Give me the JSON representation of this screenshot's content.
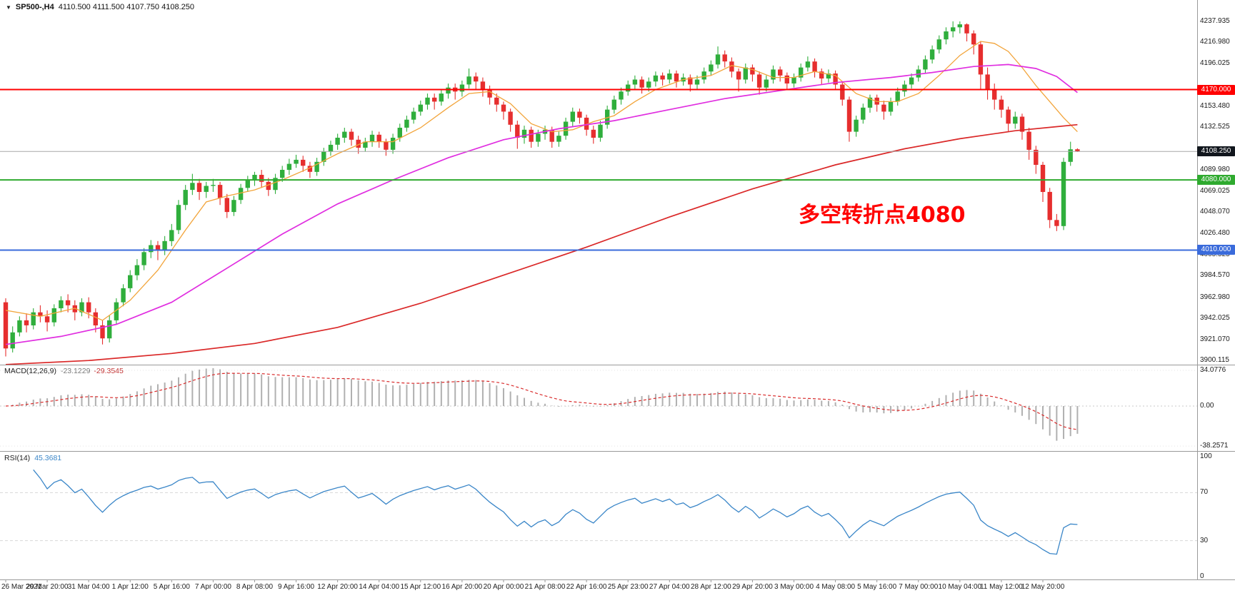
{
  "header": {
    "dropdown_icon": "▼",
    "symbol": "SP500-,H4",
    "ohlc": "4110.500 4111.500 4107.750 4108.250"
  },
  "annotation": {
    "text": "多空转折点4080",
    "color": "#ff0000"
  },
  "price_axis": {
    "ticks": [
      "4237.935",
      "4216.980",
      "4196.025",
      "4153.480",
      "4132.525",
      "4089.980",
      "4069.025",
      "4048.070",
      "4026.480",
      "4005.525",
      "3984.570",
      "3962.980",
      "3942.025",
      "3921.070",
      "3900.115"
    ],
    "tags": [
      {
        "label": "4170.000",
        "price": 4170.0,
        "bg": "#ff0000"
      },
      {
        "label": "4108.250",
        "price": 4108.25,
        "bg": "#11161d"
      },
      {
        "label": "4080.000",
        "price": 4080.0,
        "bg": "#2faa2f"
      },
      {
        "label": "4010.000",
        "price": 4010.0,
        "bg": "#3a6bdb"
      }
    ]
  },
  "levels": [
    {
      "name": "resistance-line-4170",
      "price": 4170.0,
      "color": "#ff0000",
      "width": 2
    },
    {
      "name": "current-price-line",
      "price": 4108.25,
      "color": "#a8a8a8",
      "width": 1
    },
    {
      "name": "pivot-line-4080",
      "price": 4080.0,
      "color": "#2faa2f",
      "width": 2
    },
    {
      "name": "support-line-4010",
      "price": 4010.0,
      "color": "#3a6bdb",
      "width": 2
    }
  ],
  "macd": {
    "label": "MACD(12,26,9)",
    "hist_value": "-23.1229",
    "signal_value": "-29.3545",
    "axis_ticks": [
      "34.0776",
      "0.00",
      "-38.2571"
    ],
    "max": 34.0776,
    "min": -38.2571
  },
  "rsi": {
    "label": "RSI(14)",
    "value": "45.3681",
    "axis_ticks": [
      "100",
      "70",
      "30",
      "0"
    ],
    "levels": [
      70,
      30
    ]
  },
  "colors": {
    "up": "#2fae3c",
    "down": "#e62e2e",
    "macd_hist": "#b0b0b0",
    "macd_signal": "#d92b2b",
    "rsi_line": "#3a86c8",
    "separator": "#9a9a9a"
  },
  "chart_data": {
    "type": "candlestick",
    "title": "SP500-,H4",
    "timeframe": "H4",
    "ylim": [
      3900.115,
      4237.935
    ],
    "current_price": 4108.25,
    "time_labels": [
      "26 Mar 2021",
      "29 Mar 20:00",
      "31 Mar 04:00",
      "1 Apr 12:00",
      "5 Apr 16:00",
      "7 Apr 00:00",
      "8 Apr 08:00",
      "9 Apr 16:00",
      "12 Apr 20:00",
      "14 Apr 04:00",
      "15 Apr 12:00",
      "16 Apr 20:00",
      "20 Apr 00:00",
      "21 Apr 08:00",
      "22 Apr 16:00",
      "25 Apr 23:00",
      "27 Apr 04:00",
      "28 Apr 12:00",
      "29 Apr 20:00",
      "3 May 00:00",
      "4 May 08:00",
      "5 May 16:00",
      "7 May 00:00",
      "10 May 04:00",
      "11 May 12:00",
      "12 May 20:00"
    ],
    "labels_every_n_candles": 6,
    "candles_ohlc": [
      [
        3958,
        3962,
        3904,
        3912
      ],
      [
        3912,
        3934,
        3908,
        3928
      ],
      [
        3928,
        3944,
        3924,
        3940
      ],
      [
        3940,
        3947,
        3928,
        3935
      ],
      [
        3935,
        3952,
        3931,
        3948
      ],
      [
        3948,
        3955,
        3938,
        3944
      ],
      [
        3944,
        3950,
        3929,
        3938
      ],
      [
        3938,
        3956,
        3934,
        3952
      ],
      [
        3952,
        3964,
        3948,
        3960
      ],
      [
        3960,
        3966,
        3948,
        3955
      ],
      [
        3955,
        3960,
        3940,
        3948
      ],
      [
        3948,
        3962,
        3944,
        3958
      ],
      [
        3958,
        3963,
        3942,
        3948
      ],
      [
        3948,
        3952,
        3928,
        3935
      ],
      [
        3935,
        3940,
        3916,
        3922
      ],
      [
        3922,
        3945,
        3918,
        3940
      ],
      [
        3940,
        3962,
        3936,
        3958
      ],
      [
        3958,
        3976,
        3954,
        3972
      ],
      [
        3972,
        3990,
        3968,
        3985
      ],
      [
        3985,
        4001,
        3980,
        3995
      ],
      [
        3995,
        4012,
        3990,
        4008
      ],
      [
        4008,
        4020,
        4002,
        4015
      ],
      [
        4015,
        4019,
        4000,
        4010
      ],
      [
        4010,
        4024,
        4005,
        4019
      ],
      [
        4019,
        4036,
        4014,
        4030
      ],
      [
        4030,
        4060,
        4026,
        4055
      ],
      [
        4055,
        4075,
        4050,
        4070
      ],
      [
        4070,
        4086,
        4065,
        4077
      ],
      [
        4077,
        4081,
        4060,
        4068
      ],
      [
        4068,
        4078,
        4062,
        4074
      ],
      [
        4074,
        4081,
        4068,
        4075
      ],
      [
        4075,
        4078,
        4055,
        4062
      ],
      [
        4062,
        4066,
        4042,
        4048
      ],
      [
        4048,
        4064,
        4044,
        4060
      ],
      [
        4060,
        4076,
        4056,
        4072
      ],
      [
        4072,
        4084,
        4068,
        4080
      ],
      [
        4080,
        4088,
        4074,
        4085
      ],
      [
        4085,
        4090,
        4072,
        4078
      ],
      [
        4078,
        4082,
        4064,
        4070
      ],
      [
        4070,
        4086,
        4066,
        4082
      ],
      [
        4082,
        4094,
        4078,
        4090
      ],
      [
        4090,
        4101,
        4085,
        4096
      ],
      [
        4096,
        4105,
        4092,
        4100
      ],
      [
        4100,
        4104,
        4088,
        4094
      ],
      [
        4094,
        4098,
        4082,
        4088
      ],
      [
        4088,
        4102,
        4084,
        4098
      ],
      [
        4098,
        4112,
        4094,
        4108
      ],
      [
        4108,
        4119,
        4104,
        4115
      ],
      [
        4115,
        4126,
        4110,
        4122
      ],
      [
        4122,
        4132,
        4117,
        4128
      ],
      [
        4128,
        4131,
        4114,
        4120
      ],
      [
        4120,
        4124,
        4106,
        4112
      ],
      [
        4112,
        4122,
        4108,
        4118
      ],
      [
        4118,
        4129,
        4113,
        4125
      ],
      [
        4125,
        4128,
        4112,
        4118
      ],
      [
        4118,
        4121,
        4104,
        4110
      ],
      [
        4110,
        4126,
        4106,
        4122
      ],
      [
        4122,
        4136,
        4118,
        4132
      ],
      [
        4132,
        4144,
        4128,
        4140
      ],
      [
        4140,
        4152,
        4136,
        4148
      ],
      [
        4148,
        4159,
        4144,
        4155
      ],
      [
        4155,
        4166,
        4150,
        4162
      ],
      [
        4162,
        4166,
        4150,
        4158
      ],
      [
        4158,
        4170,
        4154,
        4166
      ],
      [
        4166,
        4176,
        4161,
        4172
      ],
      [
        4172,
        4176,
        4160,
        4168
      ],
      [
        4168,
        4179,
        4163,
        4175
      ],
      [
        4175,
        4191,
        4171,
        4183
      ],
      [
        4183,
        4187,
        4170,
        4178
      ],
      [
        4178,
        4182,
        4163,
        4170
      ],
      [
        4170,
        4174,
        4155,
        4162
      ],
      [
        4162,
        4166,
        4148,
        4155
      ],
      [
        4155,
        4158,
        4140,
        4148
      ],
      [
        4148,
        4151,
        4128,
        4135
      ],
      [
        4135,
        4139,
        4111,
        4122
      ],
      [
        4122,
        4134,
        4116,
        4130
      ],
      [
        4130,
        4133,
        4112,
        4118
      ],
      [
        4118,
        4130,
        4113,
        4126
      ],
      [
        4126,
        4134,
        4120,
        4130
      ],
      [
        4130,
        4133,
        4112,
        4118
      ],
      [
        4118,
        4128,
        4113,
        4124
      ],
      [
        4124,
        4142,
        4120,
        4138
      ],
      [
        4138,
        4152,
        4133,
        4148
      ],
      [
        4148,
        4151,
        4136,
        4142
      ],
      [
        4142,
        4145,
        4124,
        4130
      ],
      [
        4130,
        4134,
        4116,
        4122
      ],
      [
        4122,
        4139,
        4118,
        4135
      ],
      [
        4135,
        4154,
        4131,
        4150
      ],
      [
        4150,
        4164,
        4146,
        4160
      ],
      [
        4160,
        4172,
        4155,
        4168
      ],
      [
        4168,
        4179,
        4164,
        4175
      ],
      [
        4175,
        4184,
        4170,
        4180
      ],
      [
        4180,
        4183,
        4166,
        4172
      ],
      [
        4172,
        4182,
        4168,
        4178
      ],
      [
        4178,
        4188,
        4173,
        4184
      ],
      [
        4184,
        4187,
        4174,
        4180
      ],
      [
        4180,
        4190,
        4176,
        4186
      ],
      [
        4186,
        4189,
        4172,
        4178
      ],
      [
        4178,
        4186,
        4174,
        4182
      ],
      [
        4182,
        4185,
        4168,
        4175
      ],
      [
        4175,
        4184,
        4170,
        4180
      ],
      [
        4180,
        4192,
        4176,
        4188
      ],
      [
        4188,
        4199,
        4184,
        4195
      ],
      [
        4195,
        4213,
        4191,
        4205
      ],
      [
        4205,
        4209,
        4192,
        4198
      ],
      [
        4198,
        4202,
        4182,
        4188
      ],
      [
        4188,
        4191,
        4168,
        4180
      ],
      [
        4180,
        4196,
        4176,
        4192
      ],
      [
        4192,
        4195,
        4178,
        4185
      ],
      [
        4185,
        4188,
        4165,
        4172
      ],
      [
        4172,
        4184,
        4168,
        4180
      ],
      [
        4180,
        4194,
        4176,
        4190
      ],
      [
        4190,
        4193,
        4178,
        4184
      ],
      [
        4184,
        4187,
        4170,
        4176
      ],
      [
        4176,
        4186,
        4172,
        4182
      ],
      [
        4182,
        4196,
        4178,
        4192
      ],
      [
        4192,
        4203,
        4188,
        4198
      ],
      [
        4198,
        4201,
        4182,
        4188
      ],
      [
        4188,
        4191,
        4175,
        4181
      ],
      [
        4181,
        4190,
        4177,
        4186
      ],
      [
        4186,
        4189,
        4170,
        4175
      ],
      [
        4175,
        4178,
        4154,
        4160
      ],
      [
        4160,
        4163,
        4118,
        4128
      ],
      [
        4128,
        4144,
        4123,
        4140
      ],
      [
        4140,
        4156,
        4136,
        4152
      ],
      [
        4152,
        4165,
        4147,
        4162
      ],
      [
        4162,
        4165,
        4148,
        4155
      ],
      [
        4155,
        4159,
        4140,
        4148
      ],
      [
        4148,
        4162,
        4144,
        4158
      ],
      [
        4158,
        4172,
        4154,
        4168
      ],
      [
        4168,
        4179,
        4163,
        4175
      ],
      [
        4175,
        4186,
        4171,
        4182
      ],
      [
        4182,
        4194,
        4178,
        4190
      ],
      [
        4190,
        4204,
        4186,
        4200
      ],
      [
        4200,
        4214,
        4196,
        4210
      ],
      [
        4210,
        4224,
        4206,
        4220
      ],
      [
        4220,
        4232,
        4215,
        4228
      ],
      [
        4228,
        4238,
        4222,
        4232
      ],
      [
        4232,
        4237.9,
        4226,
        4235
      ],
      [
        4235,
        4236,
        4218,
        4226
      ],
      [
        4226,
        4229,
        4205,
        4215
      ],
      [
        4215,
        4218,
        4170,
        4185
      ],
      [
        4185,
        4192,
        4160,
        4170
      ],
      [
        4170,
        4176,
        4150,
        4160
      ],
      [
        4160,
        4164,
        4142,
        4150
      ],
      [
        4150,
        4153,
        4128,
        4136
      ],
      [
        4136,
        4148,
        4131,
        4143
      ],
      [
        4143,
        4146,
        4120,
        4128
      ],
      [
        4128,
        4132,
        4100,
        4110
      ],
      [
        4110,
        4114,
        4086,
        4095
      ],
      [
        4095,
        4098,
        4058,
        4068
      ],
      [
        4068,
        4072,
        4032,
        4040
      ],
      [
        4040,
        4046,
        4029,
        4034
      ],
      [
        4034,
        4102,
        4030,
        4098
      ],
      [
        4098,
        4118,
        4094,
        4110.5
      ],
      [
        4110.5,
        4111.5,
        4107.75,
        4108.25
      ]
    ],
    "moving_averages": [
      {
        "name": "fast",
        "color": "#f2a43a",
        "points": [
          [
            0,
            3950
          ],
          [
            5,
            3944
          ],
          [
            10,
            3952
          ],
          [
            14,
            3940
          ],
          [
            18,
            3960
          ],
          [
            22,
            3990
          ],
          [
            26,
            4030
          ],
          [
            29,
            4058
          ],
          [
            32,
            4064
          ],
          [
            36,
            4070
          ],
          [
            40,
            4080
          ],
          [
            44,
            4092
          ],
          [
            48,
            4106
          ],
          [
            52,
            4118
          ],
          [
            56,
            4118
          ],
          [
            60,
            4132
          ],
          [
            64,
            4152
          ],
          [
            67,
            4166
          ],
          [
            70,
            4168
          ],
          [
            73,
            4156
          ],
          [
            76,
            4136
          ],
          [
            79,
            4128
          ],
          [
            82,
            4130
          ],
          [
            85,
            4138
          ],
          [
            88,
            4144
          ],
          [
            91,
            4158
          ],
          [
            94,
            4170
          ],
          [
            98,
            4180
          ],
          [
            102,
            4184
          ],
          [
            105,
            4194
          ],
          [
            108,
            4190
          ],
          [
            111,
            4182
          ],
          [
            114,
            4182
          ],
          [
            117,
            4188
          ],
          [
            120,
            4184
          ],
          [
            123,
            4166
          ],
          [
            126,
            4158
          ],
          [
            129,
            4158
          ],
          [
            132,
            4166
          ],
          [
            135,
            4184
          ],
          [
            138,
            4204
          ],
          [
            141,
            4218
          ],
          [
            143,
            4216
          ],
          [
            145,
            4208
          ],
          [
            147,
            4192
          ],
          [
            149,
            4174
          ],
          [
            151,
            4158
          ],
          [
            153,
            4142
          ],
          [
            155,
            4128
          ]
        ]
      },
      {
        "name": "mid",
        "color": "#e02ee0",
        "points": [
          [
            0,
            3916
          ],
          [
            8,
            3924
          ],
          [
            16,
            3936
          ],
          [
            24,
            3958
          ],
          [
            32,
            3992
          ],
          [
            40,
            4026
          ],
          [
            48,
            4056
          ],
          [
            56,
            4080
          ],
          [
            64,
            4102
          ],
          [
            72,
            4120
          ],
          [
            80,
            4131
          ],
          [
            88,
            4139
          ],
          [
            96,
            4150
          ],
          [
            104,
            4161
          ],
          [
            112,
            4169
          ],
          [
            120,
            4177
          ],
          [
            128,
            4182
          ],
          [
            134,
            4187
          ],
          [
            140,
            4193
          ],
          [
            145,
            4195
          ],
          [
            149,
            4191
          ],
          [
            152,
            4183
          ],
          [
            155,
            4167
          ]
        ]
      },
      {
        "name": "slow",
        "color": "#da2828",
        "points": [
          [
            0,
            3896
          ],
          [
            12,
            3900
          ],
          [
            24,
            3907
          ],
          [
            36,
            3917
          ],
          [
            48,
            3933
          ],
          [
            60,
            3957
          ],
          [
            72,
            3985
          ],
          [
            84,
            4013
          ],
          [
            96,
            4043
          ],
          [
            108,
            4071
          ],
          [
            120,
            4095
          ],
          [
            130,
            4111
          ],
          [
            138,
            4121
          ],
          [
            146,
            4129
          ],
          [
            152,
            4133
          ],
          [
            155,
            4135
          ]
        ]
      }
    ]
  }
}
